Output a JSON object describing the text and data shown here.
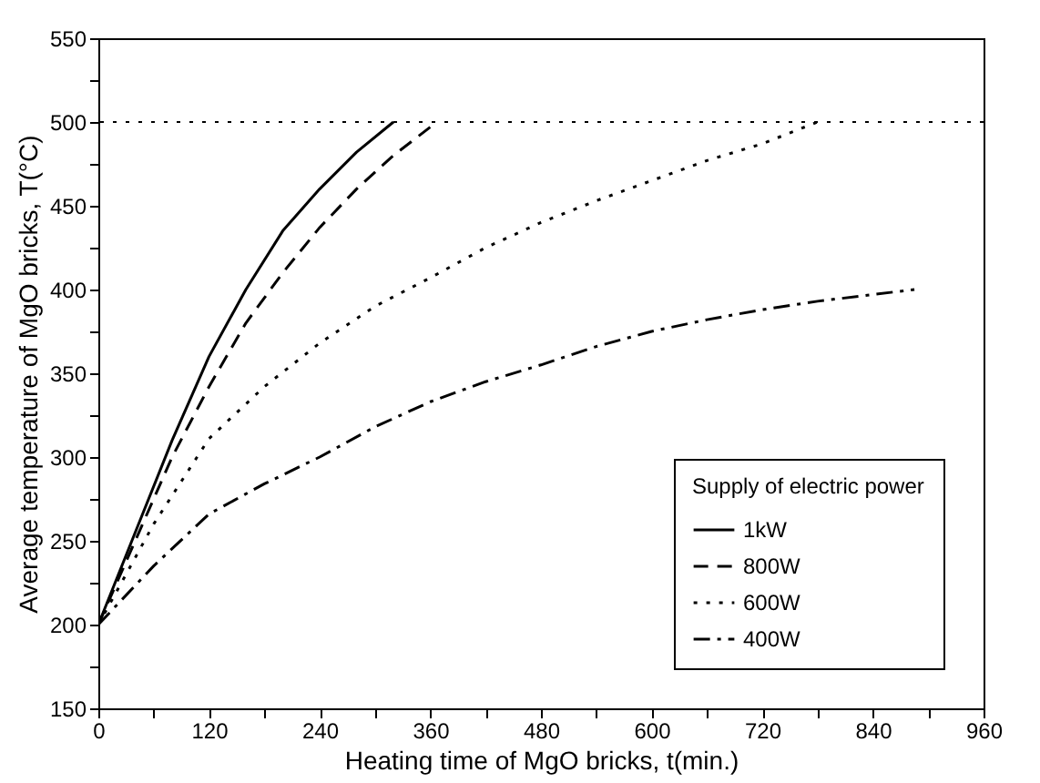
{
  "chart_data": {
    "type": "line",
    "xlabel": "Heating time of MgO bricks, t(min.)",
    "ylabel": "Average temperature of MgO bricks, T(°C)",
    "legend_title": "Supply of electric power",
    "legend": "bottom right",
    "grid": false,
    "xlim": [
      0,
      960
    ],
    "xticks": [
      0,
      {
        "value": 60,
        "label": null
      },
      120,
      {
        "value": 180,
        "label": null
      },
      240,
      {
        "value": 300,
        "label": null
      },
      360,
      {
        "value": 420,
        "label": null
      },
      480,
      {
        "value": 540,
        "label": null
      },
      600,
      {
        "value": 660,
        "label": null
      },
      720,
      {
        "value": 780,
        "label": null
      },
      840,
      {
        "value": 900,
        "label": null
      },
      960
    ],
    "ylim": [
      150,
      550
    ],
    "yticks": [
      150,
      {
        "value": 175,
        "label": null
      },
      200,
      {
        "value": 225,
        "label": null
      },
      250,
      {
        "value": 275,
        "label": null
      },
      300,
      {
        "value": 325,
        "label": null
      },
      350,
      {
        "value": 375,
        "label": null
      },
      400,
      {
        "value": 425,
        "label": null
      },
      450,
      {
        "value": 475,
        "label": null
      },
      500,
      {
        "value": 525,
        "label": null
      },
      550
    ],
    "ref_lines": [
      {
        "axis": "y",
        "value": 500,
        "line_style": "dotted",
        "color": "#000000"
      }
    ],
    "series": [
      {
        "name": "1kW",
        "color": "#000000",
        "line_style": "solid",
        "x": [
          0,
          40,
          80,
          120,
          160,
          200,
          240,
          280,
          320
        ],
        "values": [
          200,
          255,
          310,
          360,
          400,
          435,
          460,
          482,
          500
        ]
      },
      {
        "name": "800W",
        "color": "#000000",
        "line_style": "dashed",
        "x": [
          0,
          40,
          80,
          120,
          160,
          200,
          240,
          280,
          320,
          360
        ],
        "values": [
          200,
          250,
          300,
          342,
          380,
          410,
          437,
          460,
          480,
          497
        ]
      },
      {
        "name": "600W",
        "color": "#000000",
        "line_style": "dotted",
        "x": [
          0,
          60,
          120,
          180,
          240,
          300,
          360,
          420,
          480,
          540,
          600,
          660,
          720,
          780
        ],
        "values": [
          200,
          260,
          311,
          342,
          368,
          390,
          407,
          425,
          440,
          453,
          465,
          477,
          487,
          500
        ]
      },
      {
        "name": "400W",
        "color": "#000000",
        "line_style": "dashdot",
        "x": [
          0,
          60,
          120,
          180,
          240,
          300,
          360,
          420,
          480,
          540,
          600,
          660,
          720,
          780,
          840,
          885
        ],
        "values": [
          200,
          235,
          266,
          284,
          300,
          318,
          333,
          345,
          355,
          366,
          375,
          382,
          388,
          393,
          397,
          400
        ]
      }
    ]
  }
}
